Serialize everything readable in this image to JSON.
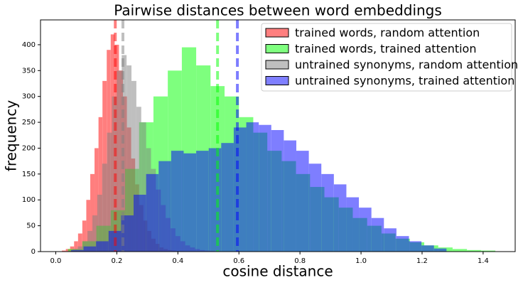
{
  "chart_data": {
    "type": "histogram",
    "title": "Pairwise distances between word embeddings",
    "x_label": "cosine distance",
    "y_label": "frequency",
    "xlim": [
      -0.05,
      1.505
    ],
    "ylim": [
      0,
      448
    ],
    "xticks": [
      {
        "value": 0,
        "label": "0.0"
      },
      0.2,
      0.4,
      0.6,
      0.8,
      {
        "value": 1,
        "label": "1.0"
      },
      1.2,
      1.4
    ],
    "yticks": [
      0,
      50,
      100,
      150,
      200,
      250,
      300,
      350,
      400
    ],
    "legend_position": "upper right",
    "series": [
      {
        "name": "trained words, random attention",
        "color": "#ff0000",
        "mean": 0.195,
        "bins": [
          0.02,
          0.033,
          0.047,
          0.06,
          0.073,
          0.087,
          0.1,
          0.113,
          0.127,
          0.14,
          0.153,
          0.167,
          0.18,
          0.193,
          0.207,
          0.22,
          0.233,
          0.247,
          0.26,
          0.273,
          0.287,
          0.3,
          0.313,
          0.327,
          0.34,
          0.353,
          0.367,
          0.38,
          0.393,
          0.407,
          0.42
        ],
        "values": [
          2,
          5,
          10,
          20,
          35,
          60,
          100,
          150,
          200,
          260,
          330,
          390,
          420,
          400,
          350,
          300,
          240,
          180,
          130,
          90,
          60,
          40,
          25,
          15,
          8,
          5,
          3,
          2,
          1,
          1
        ]
      },
      {
        "name": "trained words, trained attention",
        "color": "#00ff00",
        "mean": 0.53,
        "bins": [
          0.04,
          0.087,
          0.133,
          0.18,
          0.227,
          0.273,
          0.32,
          0.367,
          0.413,
          0.46,
          0.507,
          0.553,
          0.6,
          0.647,
          0.693,
          0.74,
          0.787,
          0.833,
          0.88,
          0.927,
          0.973,
          1.02,
          1.067,
          1.113,
          1.16,
          1.207,
          1.253,
          1.3,
          1.347,
          1.393,
          1.44
        ],
        "values": [
          5,
          20,
          50,
          80,
          160,
          250,
          300,
          350,
          395,
          360,
          320,
          300,
          260,
          230,
          195,
          175,
          150,
          125,
          105,
          85,
          65,
          50,
          35,
          25,
          18,
          12,
          8,
          5,
          3,
          2
        ]
      },
      {
        "name": "untrained synonyms, random attention",
        "color": "#808080",
        "mean": 0.22,
        "bins": [
          0.04,
          0.056,
          0.072,
          0.088,
          0.104,
          0.12,
          0.136,
          0.152,
          0.168,
          0.184,
          0.2,
          0.216,
          0.232,
          0.248,
          0.264,
          0.28,
          0.296,
          0.312,
          0.328,
          0.344,
          0.36,
          0.376,
          0.392,
          0.408,
          0.424,
          0.44,
          0.456,
          0.472,
          0.488,
          0.504,
          0.52
        ],
        "values": [
          2,
          5,
          10,
          20,
          40,
          70,
          110,
          170,
          230,
          300,
          350,
          380,
          360,
          330,
          280,
          250,
          200,
          160,
          120,
          90,
          65,
          45,
          30,
          20,
          12,
          8,
          5,
          3,
          2,
          1
        ]
      },
      {
        "name": "untrained synonyms, trained attention",
        "color": "#0000ff",
        "mean": 0.595,
        "bins": [
          0.05,
          0.091,
          0.132,
          0.173,
          0.214,
          0.255,
          0.296,
          0.337,
          0.378,
          0.419,
          0.46,
          0.501,
          0.542,
          0.583,
          0.624,
          0.665,
          0.706,
          0.747,
          0.788,
          0.829,
          0.87,
          0.911,
          0.952,
          0.993,
          1.034,
          1.075,
          1.116,
          1.157,
          1.198,
          1.239,
          1.28
        ],
        "values": [
          3,
          10,
          20,
          40,
          70,
          110,
          150,
          175,
          195,
          190,
          195,
          200,
          210,
          240,
          250,
          245,
          235,
          215,
          195,
          170,
          150,
          130,
          105,
          85,
          65,
          45,
          30,
          20,
          12,
          6
        ]
      }
    ]
  }
}
